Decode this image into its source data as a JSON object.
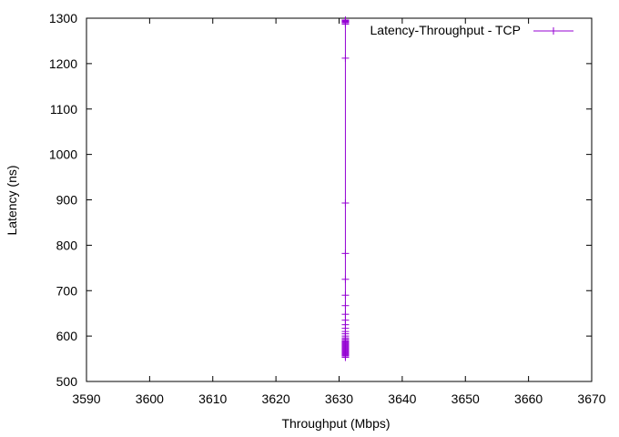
{
  "chart_data": {
    "type": "line",
    "title": "",
    "xlabel": "Throughput (Mbps)",
    "ylabel": "Latency (ns)",
    "xlim": [
      3590,
      3670
    ],
    "ylim": [
      500,
      1300
    ],
    "x_ticks": [
      "3590",
      "3600",
      "3610",
      "3620",
      "3630",
      "3640",
      "3650",
      "3660",
      "3670"
    ],
    "y_ticks": [
      "500",
      "600",
      "700",
      "800",
      "900",
      "1000",
      "1100",
      "1200",
      "1300"
    ],
    "grid": false,
    "legend_position": "top-right",
    "series": [
      {
        "name": "Latency-Throughput - TCP",
        "color": "#9400d3",
        "marker": "plus",
        "x": [
          3631,
          3631,
          3631,
          3631,
          3631,
          3631,
          3631,
          3631,
          3631,
          3631,
          3631,
          3631,
          3631,
          3631,
          3631,
          3631,
          3631,
          3631,
          3631,
          3631,
          3631,
          3631,
          3631,
          3631,
          3631,
          3631,
          3631,
          3631,
          3631,
          3631,
          3631,
          3631,
          3631,
          3631,
          3631,
          3631,
          3631,
          3631,
          3631
        ],
        "y": [
          553,
          556,
          558,
          560,
          562,
          564,
          566,
          568,
          570,
          572,
          574,
          576,
          578,
          580,
          582,
          584,
          586,
          588,
          590,
          593,
          596,
          600,
          605,
          610,
          617,
          625,
          635,
          648,
          667,
          690,
          725,
          782,
          893,
          1212,
          1287,
          1290,
          1292,
          1294,
          1296
        ]
      }
    ]
  }
}
